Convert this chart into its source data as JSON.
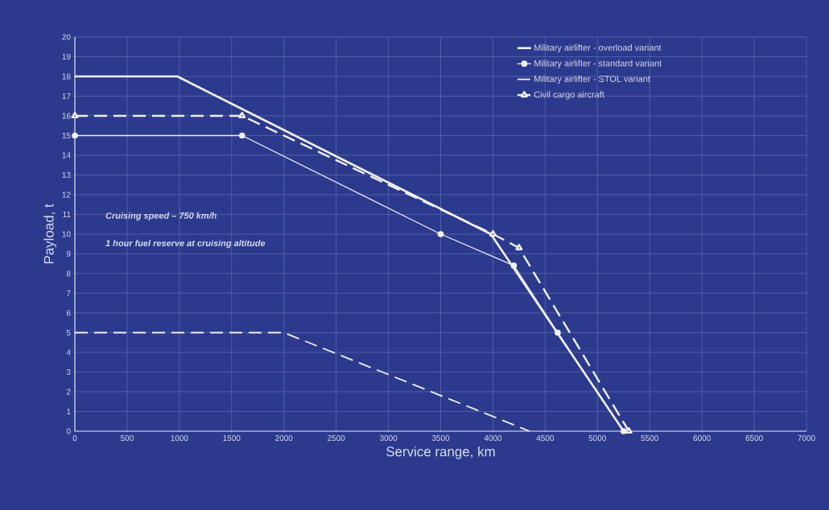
{
  "chart_data": {
    "type": "line",
    "xlabel": "Service range, km",
    "ylabel": "Payload, t",
    "xlim": [
      0,
      7000
    ],
    "ylim": [
      0,
      20
    ],
    "xticks": [
      0,
      500,
      1000,
      1500,
      2000,
      2500,
      3000,
      3500,
      4000,
      4500,
      5000,
      5500,
      6000,
      6500,
      7000
    ],
    "yticks": [
      0,
      1,
      2,
      3,
      4,
      5,
      6,
      7,
      8,
      9,
      10,
      11,
      12,
      13,
      14,
      15,
      16,
      17,
      18,
      19,
      20
    ],
    "grid": true,
    "legend": "top right",
    "annotations": [
      "Cruising speed – 750 km/h",
      "1 hour fuel reserve at cruising altitude"
    ],
    "series": [
      {
        "name": "Military airlifter - overload variant",
        "color": "#f0f0f4",
        "line_style": "solid",
        "marker": "none",
        "x": [
          0,
          980,
          3980,
          5250
        ],
        "values": [
          18,
          18,
          10,
          0
        ]
      },
      {
        "name": "Military airlifter - standard variant",
        "color": "#f0f0f4",
        "line_style": "solid",
        "marker": "circle",
        "x": [
          0,
          1600,
          3500,
          4200,
          4620,
          5250
        ],
        "values": [
          15,
          15,
          10,
          8.4,
          5,
          0
        ]
      },
      {
        "name": "Military airlifter - STOL variant",
        "color": "#f0f0f4",
        "line_style": "dashed",
        "marker": "none",
        "x": [
          0,
          2000,
          4350
        ],
        "values": [
          5,
          5,
          0
        ]
      },
      {
        "name": "Civil cargo aircraft",
        "color": "#f0f0f4",
        "line_style": "dashed",
        "marker": "triangle",
        "x": [
          0,
          1600,
          4000,
          4250,
          5300
        ],
        "values": [
          16,
          16,
          10,
          9.3,
          0
        ]
      }
    ]
  }
}
